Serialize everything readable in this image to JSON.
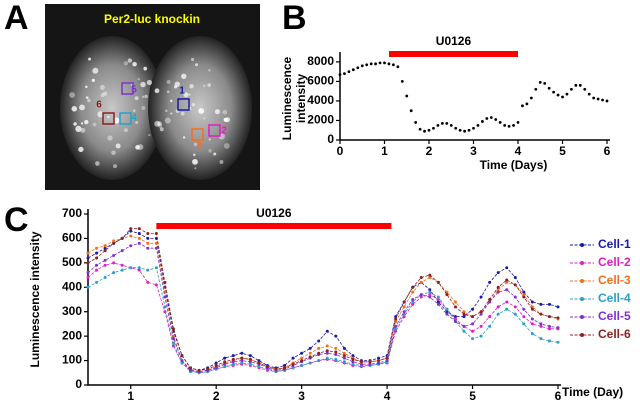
{
  "panel_labels": [
    "A",
    "B",
    "C"
  ],
  "image": {
    "title": "Per2-luc knockin",
    "rois": [
      {
        "label": "1",
        "color": "#1a1aa8"
      },
      {
        "label": "2",
        "color": "#e020c0"
      },
      {
        "label": "3",
        "color": "#f07020"
      },
      {
        "label": "4",
        "color": "#2aa0c8"
      },
      {
        "label": "5",
        "color": "#8030d0"
      },
      {
        "label": "6",
        "color": "#902020"
      }
    ]
  },
  "chart_data": [
    {
      "type": "scatter",
      "xlabel": "Time (Days)",
      "ylabel_lines": [
        "Luminescence",
        "intensity"
      ],
      "treatment": {
        "label": "U0126",
        "start": 1.1,
        "end": 4.0,
        "color": "#ff0000"
      },
      "x": [
        0,
        0.1,
        0.2,
        0.3,
        0.4,
        0.5,
        0.6,
        0.7,
        0.8,
        0.9,
        1,
        1.1,
        1.2,
        1.3,
        1.4,
        1.5,
        1.6,
        1.7,
        1.8,
        1.9,
        2,
        2.1,
        2.2,
        2.3,
        2.4,
        2.5,
        2.6,
        2.7,
        2.8,
        2.9,
        3,
        3.1,
        3.2,
        3.3,
        3.4,
        3.5,
        3.6,
        3.7,
        3.8,
        3.9,
        4,
        4.1,
        4.2,
        4.3,
        4.4,
        4.5,
        4.6,
        4.7,
        4.8,
        4.9,
        5,
        5.1,
        5.2,
        5.3,
        5.4,
        5.5,
        5.6,
        5.7,
        5.8,
        5.9,
        6
      ],
      "values": [
        6700,
        6800,
        7000,
        7200,
        7400,
        7600,
        7700,
        7800,
        7800,
        7900,
        7900,
        7800,
        7700,
        7500,
        6000,
        4500,
        3000,
        1800,
        1100,
        900,
        1000,
        1200,
        1500,
        1700,
        1700,
        1500,
        1200,
        1000,
        900,
        1000,
        1200,
        1500,
        1900,
        2200,
        2300,
        2100,
        1800,
        1500,
        1400,
        1500,
        1800,
        3500,
        3700,
        4300,
        5200,
        5900,
        5800,
        5300,
        4900,
        4600,
        4400,
        4700,
        5200,
        5600,
        5600,
        5200,
        4700,
        4300,
        4200,
        4100,
        4000
      ],
      "color": "#000000",
      "xlim": [
        0,
        6
      ],
      "xticks": [
        0,
        1,
        2,
        3,
        4,
        5,
        6
      ],
      "ylim": [
        0,
        8500
      ],
      "yticks": [
        0,
        2000,
        4000,
        6000,
        8000
      ]
    },
    {
      "type": "line",
      "xlabel": "Time (Day)",
      "ylabel": "Luminescence intensity",
      "treatment": {
        "label": "U0126",
        "start": 1.3,
        "end": 4.05,
        "color": "#ff0000"
      },
      "x": [
        0.5,
        0.6,
        0.7,
        0.8,
        0.9,
        1,
        1.1,
        1.2,
        1.3,
        1.4,
        1.5,
        1.6,
        1.7,
        1.8,
        1.9,
        2,
        2.1,
        2.2,
        2.3,
        2.4,
        2.5,
        2.6,
        2.7,
        2.8,
        2.9,
        3,
        3.1,
        3.2,
        3.3,
        3.4,
        3.5,
        3.6,
        3.7,
        3.8,
        3.9,
        4,
        4.1,
        4.2,
        4.3,
        4.4,
        4.5,
        4.6,
        4.7,
        4.8,
        4.9,
        5,
        5.1,
        5.2,
        5.3,
        5.4,
        5.5,
        5.6,
        5.7,
        5.8,
        5.9,
        6
      ],
      "series": [
        {
          "name": "Cell-1",
          "color": "#1a1aa8",
          "values": [
            520,
            540,
            560,
            580,
            600,
            630,
            620,
            600,
            600,
            400,
            220,
            120,
            70,
            60,
            70,
            90,
            110,
            120,
            130,
            120,
            100,
            80,
            70,
            80,
            110,
            130,
            150,
            180,
            220,
            200,
            150,
            120,
            100,
            100,
            110,
            120,
            280,
            340,
            400,
            420,
            390,
            340,
            300,
            280,
            280,
            310,
            360,
            420,
            460,
            480,
            440,
            380,
            340,
            330,
            330,
            320
          ]
        },
        {
          "name": "Cell-2",
          "color": "#e020c0",
          "values": [
            440,
            470,
            490,
            500,
            490,
            480,
            470,
            420,
            410,
            300,
            160,
            90,
            60,
            50,
            55,
            65,
            75,
            80,
            85,
            80,
            70,
            60,
            55,
            60,
            70,
            80,
            90,
            100,
            105,
            100,
            90,
            80,
            75,
            80,
            85,
            90,
            220,
            280,
            330,
            360,
            370,
            350,
            310,
            270,
            240,
            220,
            240,
            280,
            320,
            340,
            320,
            280,
            250,
            240,
            230,
            230
          ]
        },
        {
          "name": "Cell-3",
          "color": "#f07020",
          "values": [
            540,
            560,
            570,
            590,
            600,
            610,
            600,
            580,
            580,
            380,
            200,
            100,
            65,
            55,
            60,
            75,
            90,
            100,
            110,
            105,
            90,
            75,
            65,
            70,
            90,
            110,
            130,
            150,
            160,
            150,
            130,
            110,
            95,
            95,
            100,
            110,
            260,
            320,
            380,
            420,
            440,
            420,
            380,
            340,
            300,
            280,
            300,
            340,
            390,
            420,
            410,
            370,
            320,
            290,
            280,
            270
          ]
        },
        {
          "name": "Cell-4",
          "color": "#2aa0c8",
          "values": [
            400,
            420,
            440,
            460,
            470,
            480,
            480,
            470,
            480,
            320,
            170,
            90,
            55,
            50,
            55,
            65,
            75,
            85,
            90,
            85,
            75,
            65,
            55,
            60,
            70,
            80,
            90,
            100,
            110,
            105,
            95,
            85,
            80,
            80,
            85,
            95,
            230,
            290,
            340,
            370,
            380,
            360,
            310,
            260,
            220,
            190,
            200,
            240,
            290,
            310,
            290,
            250,
            210,
            190,
            180,
            175
          ]
        },
        {
          "name": "Cell-5",
          "color": "#8030d0",
          "values": [
            460,
            490,
            510,
            530,
            550,
            570,
            580,
            560,
            560,
            360,
            190,
            100,
            60,
            55,
            60,
            70,
            85,
            95,
            100,
            95,
            85,
            70,
            60,
            65,
            80,
            95,
            110,
            125,
            130,
            125,
            110,
            95,
            85,
            85,
            90,
            100,
            240,
            300,
            350,
            370,
            360,
            330,
            290,
            260,
            240,
            250,
            290,
            340,
            380,
            390,
            360,
            310,
            270,
            250,
            240,
            235
          ]
        },
        {
          "name": "Cell-6",
          "color": "#902020",
          "values": [
            500,
            520,
            550,
            580,
            600,
            640,
            640,
            620,
            620,
            420,
            230,
            120,
            70,
            60,
            65,
            80,
            95,
            105,
            110,
            105,
            90,
            75,
            65,
            70,
            85,
            100,
            115,
            130,
            140,
            135,
            120,
            105,
            95,
            95,
            100,
            110,
            270,
            340,
            400,
            440,
            450,
            420,
            370,
            320,
            290,
            280,
            300,
            350,
            400,
            430,
            410,
            360,
            310,
            290,
            280,
            275
          ]
        }
      ],
      "legend": "right",
      "xlim": [
        0.5,
        6
      ],
      "xticks": [
        1,
        2,
        3,
        4,
        5,
        6
      ],
      "ylim": [
        0,
        700
      ],
      "yticks": [
        0,
        100,
        200,
        300,
        400,
        500,
        600,
        700
      ]
    }
  ]
}
